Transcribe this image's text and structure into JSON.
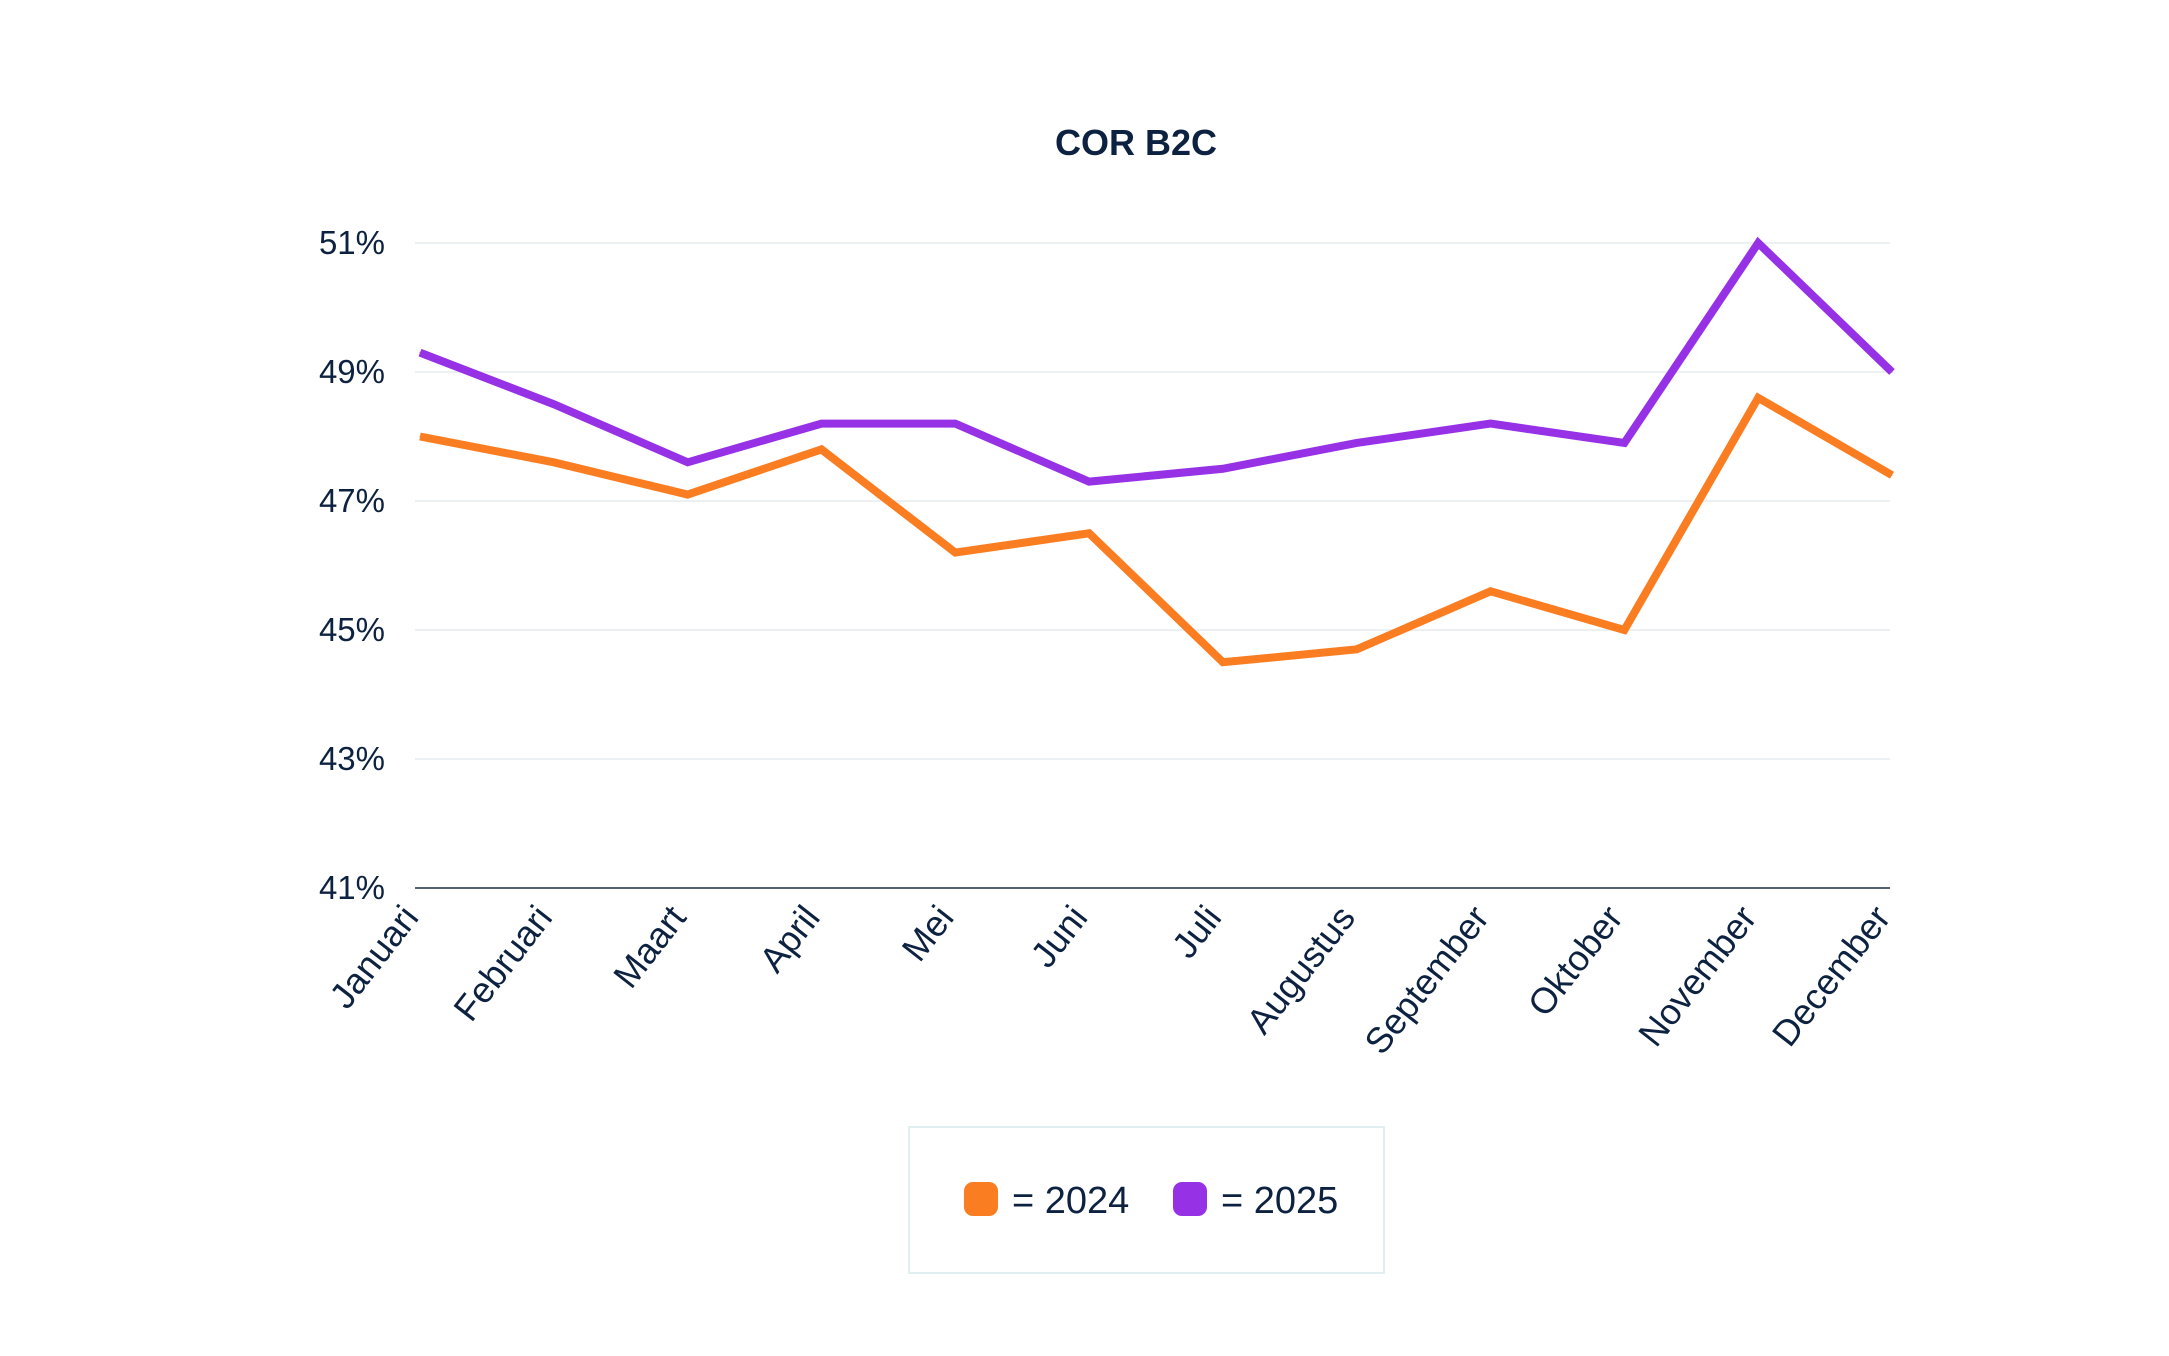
{
  "chart_data": {
    "type": "line",
    "title": "COR B2C",
    "xlabel": "",
    "ylabel": "",
    "ylim": [
      41,
      51
    ],
    "yticks": [
      41,
      43,
      45,
      47,
      49,
      51
    ],
    "ytick_labels": [
      "41%",
      "43%",
      "45%",
      "47%",
      "49%",
      "51%"
    ],
    "categories": [
      "Januari",
      "Februari",
      "Maart",
      "April",
      "Mei",
      "Juni",
      "Juli",
      "Augustus",
      "September",
      "Oktober",
      "November",
      "December"
    ],
    "series": [
      {
        "name": "2024",
        "legend_label": "= 2024",
        "color": "#fb7d22",
        "values": [
          48.0,
          47.6,
          47.1,
          47.8,
          46.2,
          46.5,
          44.5,
          44.7,
          45.6,
          45.0,
          48.6,
          47.4
        ]
      },
      {
        "name": "2025",
        "legend_label": "= 2025",
        "color": "#9631e6",
        "values": [
          49.3,
          48.5,
          47.6,
          48.2,
          48.2,
          47.3,
          47.5,
          47.9,
          48.2,
          47.9,
          51.0,
          49.0
        ]
      }
    ],
    "grid": true,
    "legend_position": "bottom-center"
  }
}
